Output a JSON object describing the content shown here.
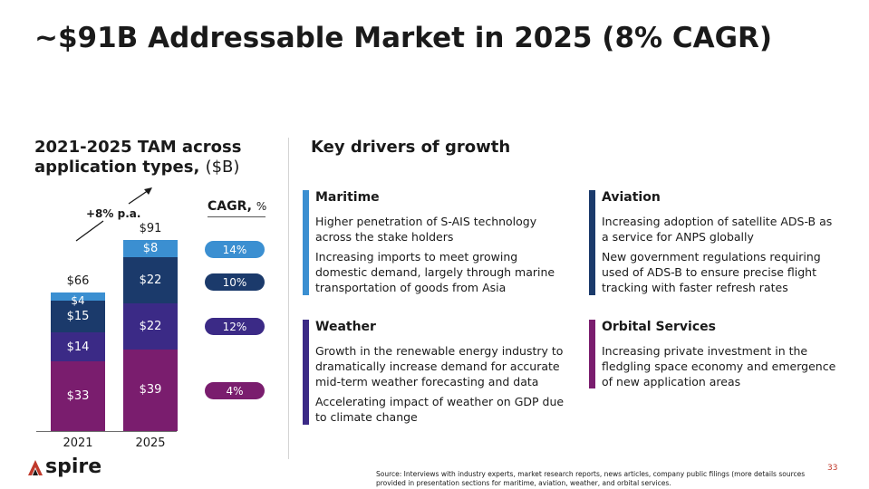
{
  "title": "~$91B Addressable Market in 2025 (8% CAGR)",
  "left_heading": {
    "main": "2021-2025 TAM across application types,",
    "unit": "($B)"
  },
  "right_heading": "Key drivers of growth",
  "growth_label": "+8% p.a.",
  "colors": {
    "maritime": "#3b8fd1",
    "aviation": "#1b3a6b",
    "weather": "#3b2a86",
    "orbital": "#7a1d6e"
  },
  "chart_data": {
    "type": "bar",
    "stacked": true,
    "categories": [
      "2021",
      "2025"
    ],
    "series": [
      {
        "values": [
          33,
          39
        ],
        "labels": [
          "$33",
          "$39"
        ],
        "color": "#7a1d6e"
      },
      {
        "values": [
          14,
          22
        ],
        "labels": [
          "$14",
          "$22"
        ],
        "color": "#3b2a86"
      },
      {
        "values": [
          15,
          22
        ],
        "labels": [
          "$15",
          "$22"
        ],
        "color": "#1b3a6b"
      },
      {
        "values": [
          4,
          8
        ],
        "labels": [
          "$4",
          "$8"
        ],
        "color": "#3b8fd1"
      }
    ],
    "totals": [
      "$66",
      "$91"
    ]
  },
  "cagr": {
    "title": "CAGR,",
    "unit": "%",
    "values": [
      "14%",
      "10%",
      "12%",
      "4%"
    ]
  },
  "drivers": {
    "maritime": {
      "title": "Maritime",
      "lines": [
        "Higher penetration of S-AIS technology",
        "across the stake holders",
        "Increasing imports to meet growing",
        "domestic demand, largely through marine",
        "transportation of goods from Asia"
      ]
    },
    "aviation": {
      "title": "Aviation",
      "lines": [
        "Increasing adoption of satellite ADS-B as",
        "a service for ANPS globally",
        "New government regulations requiring",
        "used of ADS-B to ensure precise flight",
        "tracking with faster refresh rates"
      ]
    },
    "weather": {
      "title": "Weather",
      "lines": [
        "Growth in the renewable energy industry to",
        "dramatically increase demand for accurate",
        "mid-term weather forecasting and data",
        "Accelerating impact of weather on GDP due",
        "to climate change"
      ]
    },
    "orbital": {
      "title": "Orbital Services",
      "lines": [
        "Increasing private investment in the",
        "fledgling space economy and emergence",
        "of new application areas"
      ]
    }
  },
  "logo_text": "spire",
  "source": "Source: Interviews with industry experts, market research reports, news articles, company public filings (more details sources provided in presentation sections for maritime, aviation, weather, and orbital services.",
  "page_number": "33"
}
